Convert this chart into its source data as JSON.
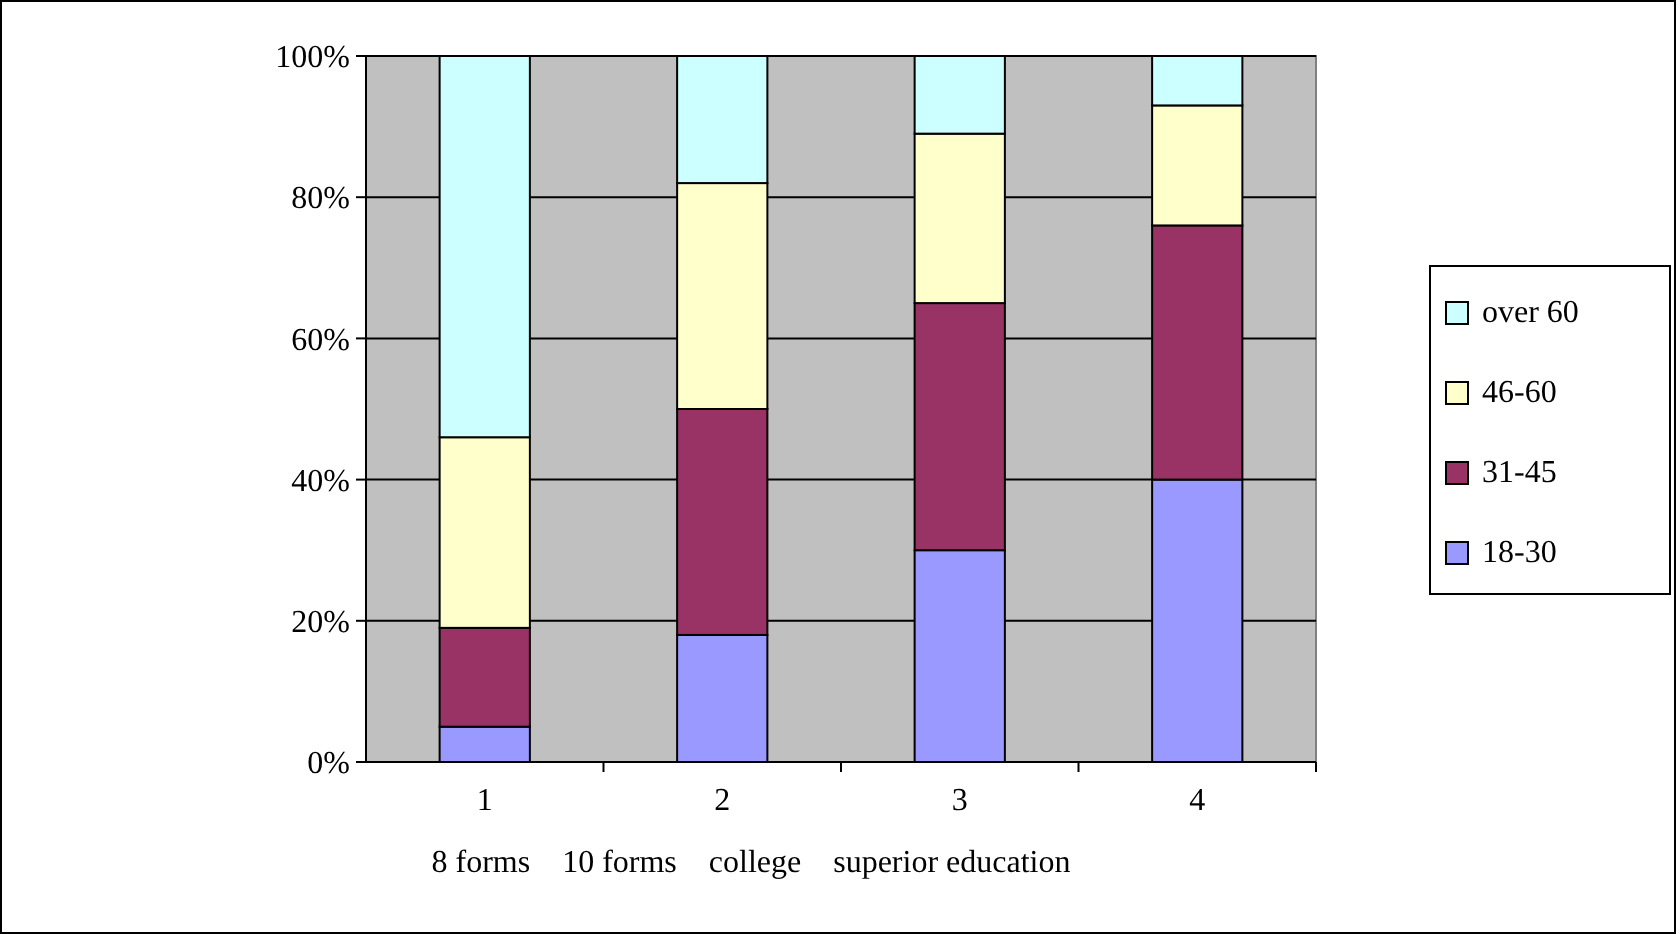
{
  "chart_data": {
    "type": "bar",
    "stacked": true,
    "categories": [
      "1",
      "2",
      "3",
      "4"
    ],
    "xlabel": "8 forms    10 forms    college    superior education",
    "series": [
      {
        "name": "18-30",
        "color": "#9999ff",
        "values": [
          5,
          18,
          30,
          40
        ]
      },
      {
        "name": "31-45",
        "color": "#993366",
        "values": [
          14,
          32,
          35,
          36
        ]
      },
      {
        "name": "46-60",
        "color": "#ffffcc",
        "values": [
          27,
          32,
          24,
          17
        ]
      },
      {
        "name": "over 60",
        "color": "#ccffff",
        "values": [
          54,
          18,
          11,
          7
        ]
      }
    ],
    "ylim": [
      0,
      100
    ],
    "yticks": [
      {
        "value": 0,
        "label": "0%"
      },
      {
        "value": 20,
        "label": "20%"
      },
      {
        "value": 40,
        "label": "40%"
      },
      {
        "value": 60,
        "label": "60%"
      },
      {
        "value": 80,
        "label": "80%"
      },
      {
        "value": 100,
        "label": "100%"
      }
    ],
    "grid": "y",
    "legend": "right"
  }
}
